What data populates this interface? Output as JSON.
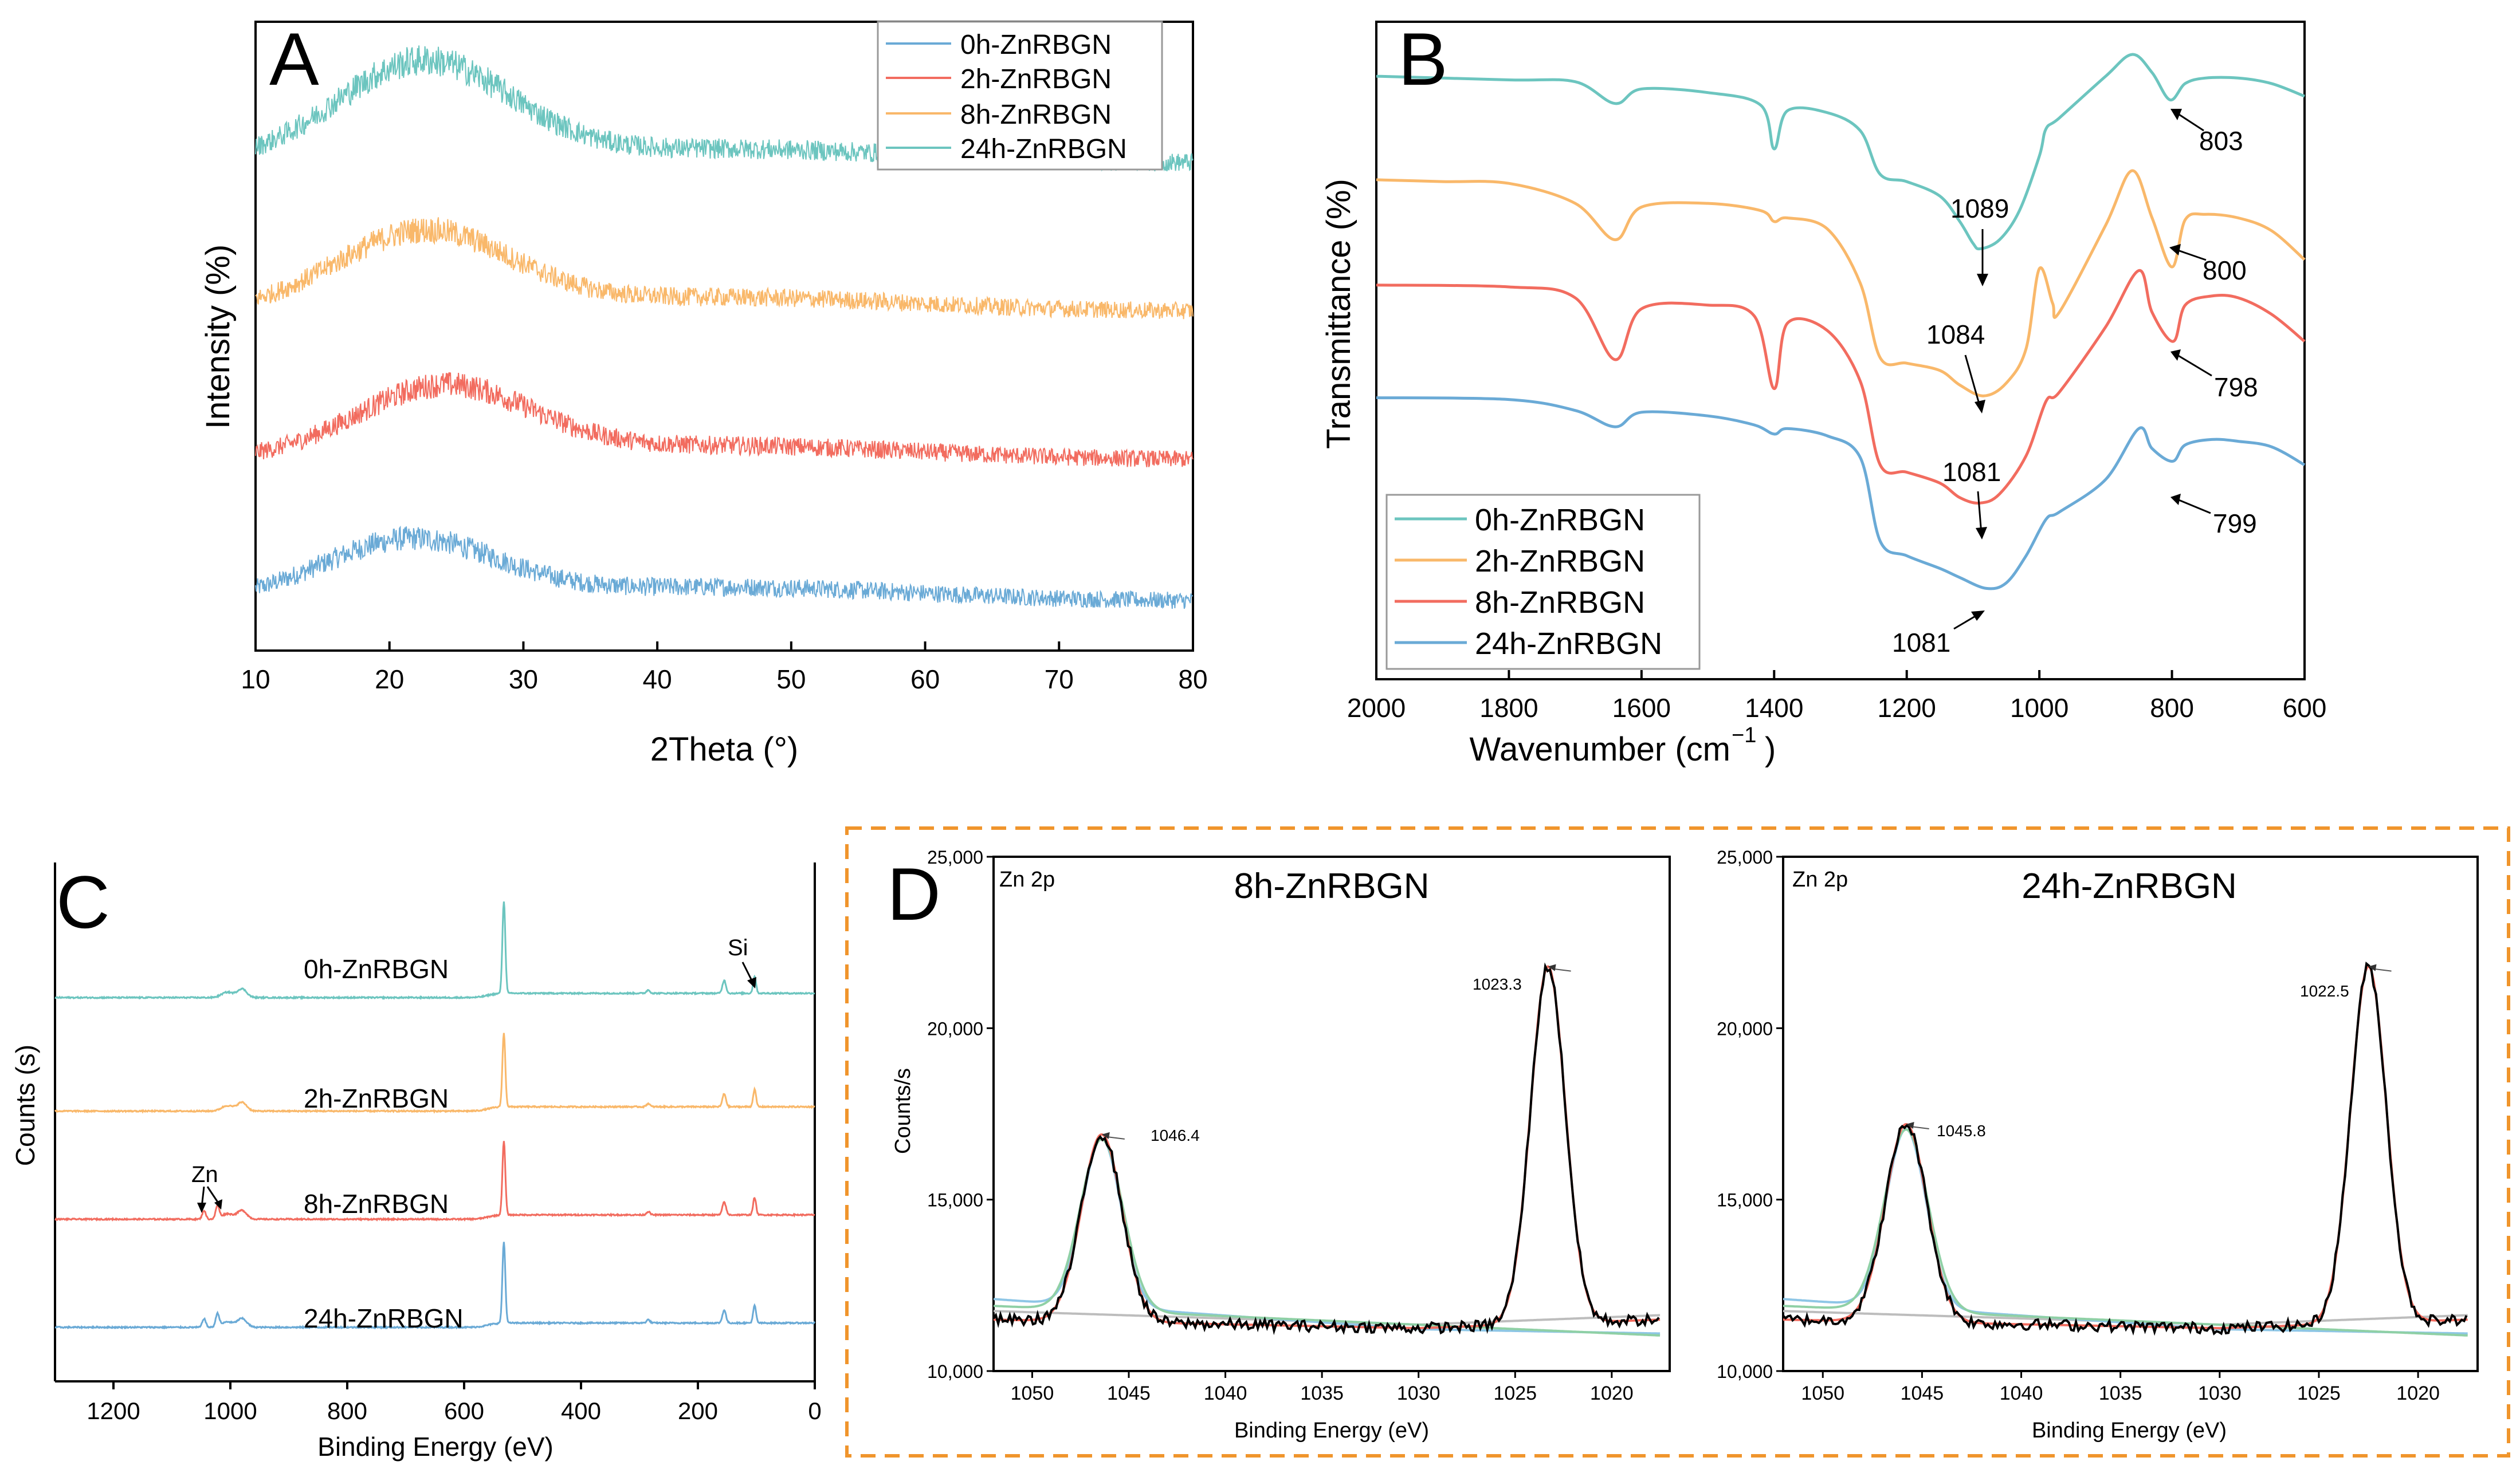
{
  "colors": {
    "teal": "#6cc5bf",
    "orange": "#f9b86a",
    "red": "#f26c5f",
    "blue": "#6aaad6",
    "dashed_box": "#f0952c",
    "fit_green": "#8fd0a5",
    "fit_blue": "#8ec6e6",
    "fit_gray": "#bdbdbd",
    "measured": "#000000"
  },
  "chart_data": [
    {
      "panel": "A",
      "type": "line",
      "title": "",
      "xlabel": "2Theta (°)",
      "ylabel": "Intensity (%)",
      "xlim": [
        10,
        80
      ],
      "xticks": [
        "10",
        "20",
        "30",
        "40",
        "50",
        "60",
        "70",
        "80"
      ],
      "legend_position": "top-right",
      "series": [
        {
          "name": "0h-ZnRBGN",
          "color": "#6aaad6",
          "offset": 0.0,
          "peak_x": 21.5,
          "peak_height": 0.42,
          "noise": 0.12
        },
        {
          "name": "2h-ZnRBGN",
          "color": "#f26c5f",
          "offset": 1.0,
          "peak_x": 24.0,
          "peak_height": 0.5,
          "noise": 0.12
        },
        {
          "name": "8h-ZnRBGN",
          "color": "#f9b86a",
          "offset": 2.05,
          "peak_x": 22.5,
          "peak_height": 0.55,
          "noise": 0.12
        },
        {
          "name": "24h-ZnRBGN",
          "color": "#6cc5bf",
          "offset": 3.1,
          "peak_x": 22.5,
          "peak_height": 0.7,
          "noise": 0.13
        }
      ]
    },
    {
      "panel": "B",
      "type": "line",
      "title": "",
      "xlabel": "Wavenumber (cm",
      "xlabel_sup": "−1",
      "xlabel_end": ")",
      "ylabel": "Transmittance (%)",
      "xlim": [
        2000,
        600
      ],
      "xticks": [
        "2000",
        "1800",
        "1600",
        "1400",
        "1200",
        "1000",
        "800",
        "600"
      ],
      "legend_position": "bottom-left",
      "series": [
        {
          "name": "0h-ZnRBGN",
          "color": "#6cc5bf",
          "points": [
            [
              2000,
              3.32
            ],
            [
              1800,
              3.3
            ],
            [
              1700,
              3.29
            ],
            [
              1640,
              3.17
            ],
            [
              1600,
              3.25
            ],
            [
              1500,
              3.23
            ],
            [
              1420,
              3.16
            ],
            [
              1400,
              2.92
            ],
            [
              1380,
              3.13
            ],
            [
              1320,
              3.12
            ],
            [
              1270,
              3.02
            ],
            [
              1240,
              2.78
            ],
            [
              1200,
              2.74
            ],
            [
              1150,
              2.66
            ],
            [
              1120,
              2.52
            ],
            [
              1100,
              2.4
            ],
            [
              1089,
              2.37
            ],
            [
              1060,
              2.42
            ],
            [
              1030,
              2.58
            ],
            [
              1000,
              2.88
            ],
            [
              990,
              3.03
            ],
            [
              970,
              3.09
            ],
            [
              900,
              3.32
            ],
            [
              860,
              3.44
            ],
            [
              830,
              3.34
            ],
            [
              803,
              3.19
            ],
            [
              780,
              3.28
            ],
            [
              750,
              3.31
            ],
            [
              700,
              3.31
            ],
            [
              650,
              3.28
            ],
            [
              600,
              3.21
            ]
          ]
        },
        {
          "name": "2h-ZnRBGN",
          "color": "#f9b86a",
          "points": [
            [
              2000,
              2.75
            ],
            [
              1900,
              2.74
            ],
            [
              1800,
              2.73
            ],
            [
              1700,
              2.62
            ],
            [
              1640,
              2.42
            ],
            [
              1600,
              2.6
            ],
            [
              1500,
              2.62
            ],
            [
              1420,
              2.58
            ],
            [
              1400,
              2.52
            ],
            [
              1380,
              2.54
            ],
            [
              1320,
              2.48
            ],
            [
              1270,
              2.18
            ],
            [
              1240,
              1.77
            ],
            [
              1200,
              1.74
            ],
            [
              1150,
              1.7
            ],
            [
              1120,
              1.62
            ],
            [
              1084,
              1.56
            ],
            [
              1050,
              1.63
            ],
            [
              1020,
              1.82
            ],
            [
              1000,
              2.26
            ],
            [
              980,
              2.07
            ],
            [
              970,
              2.02
            ],
            [
              900,
              2.5
            ],
            [
              860,
              2.8
            ],
            [
              830,
              2.54
            ],
            [
              800,
              2.27
            ],
            [
              780,
              2.53
            ],
            [
              750,
              2.56
            ],
            [
              700,
              2.54
            ],
            [
              650,
              2.47
            ],
            [
              600,
              2.31
            ]
          ]
        },
        {
          "name": "8h-ZnRBGN",
          "color": "#f26c5f",
          "points": [
            [
              2000,
              2.17
            ],
            [
              1800,
              2.16
            ],
            [
              1700,
              2.1
            ],
            [
              1640,
              1.76
            ],
            [
              1600,
              2.04
            ],
            [
              1500,
              2.06
            ],
            [
              1430,
              2.0
            ],
            [
              1400,
              1.6
            ],
            [
              1380,
              1.96
            ],
            [
              1320,
              1.92
            ],
            [
              1270,
              1.64
            ],
            [
              1240,
              1.18
            ],
            [
              1200,
              1.14
            ],
            [
              1150,
              1.08
            ],
            [
              1120,
              1.0
            ],
            [
              1090,
              0.97
            ],
            [
              1060,
              1.02
            ],
            [
              1020,
              1.23
            ],
            [
              990,
              1.53
            ],
            [
              970,
              1.58
            ],
            [
              900,
              1.94
            ],
            [
              850,
              2.25
            ],
            [
              830,
              2.02
            ],
            [
              798,
              1.86
            ],
            [
              780,
              2.06
            ],
            [
              740,
              2.11
            ],
            [
              700,
              2.1
            ],
            [
              650,
              2.01
            ],
            [
              600,
              1.86
            ]
          ]
        },
        {
          "name": "24h-ZnRBGN",
          "color": "#6aaad6",
          "points": [
            [
              2000,
              1.55
            ],
            [
              1800,
              1.54
            ],
            [
              1700,
              1.48
            ],
            [
              1640,
              1.39
            ],
            [
              1600,
              1.47
            ],
            [
              1500,
              1.45
            ],
            [
              1430,
              1.4
            ],
            [
              1400,
              1.35
            ],
            [
              1380,
              1.38
            ],
            [
              1320,
              1.34
            ],
            [
              1270,
              1.22
            ],
            [
              1240,
              0.76
            ],
            [
              1200,
              0.68
            ],
            [
              1150,
              0.61
            ],
            [
              1120,
              0.56
            ],
            [
              1080,
              0.5
            ],
            [
              1050,
              0.53
            ],
            [
              1020,
              0.68
            ],
            [
              990,
              0.88
            ],
            [
              970,
              0.92
            ],
            [
              900,
              1.1
            ],
            [
              850,
              1.38
            ],
            [
              830,
              1.27
            ],
            [
              799,
              1.2
            ],
            [
              780,
              1.29
            ],
            [
              740,
              1.32
            ],
            [
              700,
              1.31
            ],
            [
              650,
              1.28
            ],
            [
              600,
              1.18
            ]
          ]
        }
      ],
      "annotations": [
        "1089",
        "1084",
        "1081",
        "1081",
        "803",
        "800",
        "798",
        "799"
      ]
    },
    {
      "panel": "C",
      "type": "line",
      "title": "",
      "xlabel": "Binding Energy (eV)",
      "ylabel": "Counts (s)",
      "xlim": [
        1300,
        0
      ],
      "xticks": [
        "1200",
        "1000",
        "800",
        "600",
        "400",
        "200",
        "0"
      ],
      "series": [
        {
          "name": "0h-ZnRBGN",
          "color": "#6cc5bf",
          "baseline": 3.05,
          "o1s": 0.85,
          "zn": false
        },
        {
          "name": "2h-ZnRBGN",
          "color": "#f9b86a",
          "baseline": 2.0,
          "o1s": 0.68,
          "zn": false
        },
        {
          "name": "8h-ZnRBGN",
          "color": "#f26c5f",
          "baseline": 1.0,
          "o1s": 0.68,
          "zn": true
        },
        {
          "name": "24h-ZnRBGN",
          "color": "#6aaad6",
          "baseline": 0.0,
          "o1s": 0.75,
          "zn": true
        }
      ],
      "annotations": [
        "Si",
        "Zn"
      ]
    },
    {
      "panel": "D",
      "type": "line",
      "title": "8h-ZnRBGN",
      "corner_label": "Zn 2p",
      "xlabel": "Binding Energy (eV)",
      "ylabel": "Counts/s",
      "xlim": [
        1052,
        1017
      ],
      "ylim": [
        10000,
        25000
      ],
      "xticks": [
        "1050",
        "1045",
        "1040",
        "1035",
        "1030",
        "1025",
        "1020"
      ],
      "yticks": [
        "10,000",
        "15,000",
        "20,000",
        "25,000"
      ],
      "peaks": [
        {
          "x": 1046.4,
          "y": 16900,
          "label": "1046.4"
        },
        {
          "x": 1023.3,
          "y": 21800,
          "label": "1023.3"
        }
      ],
      "background": 11400
    },
    {
      "panel": "D2",
      "type": "line",
      "title": "24h-ZnRBGN",
      "corner_label": "Zn 2p",
      "xlabel": "Binding Energy (eV)",
      "ylabel": "",
      "xlim": [
        1052,
        1017
      ],
      "ylim": [
        10000,
        25000
      ],
      "xticks": [
        "1050",
        "1045",
        "1040",
        "1035",
        "1030",
        "1025",
        "1020"
      ],
      "yticks": [
        "10,000",
        "15,000",
        "20,000",
        "25,000"
      ],
      "peaks": [
        {
          "x": 1045.8,
          "y": 17200,
          "label": "1045.8"
        },
        {
          "x": 1022.5,
          "y": 21800,
          "label": "1022.5"
        }
      ],
      "background": 11400
    }
  ],
  "panel_letters": {
    "a": "A",
    "b": "B",
    "c": "C",
    "d": "D"
  }
}
